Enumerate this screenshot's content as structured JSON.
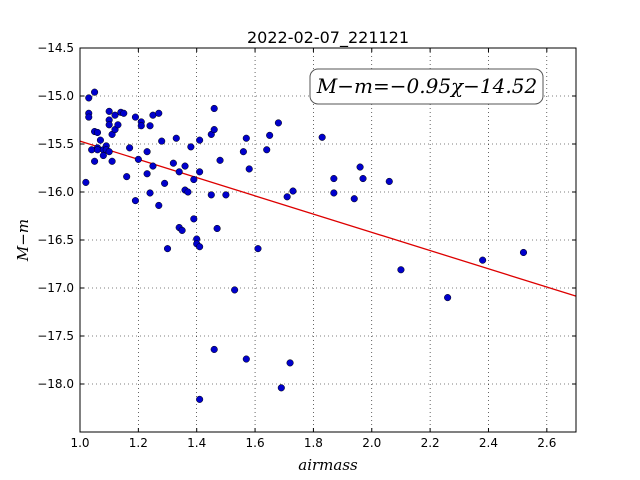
{
  "chart_data": {
    "type": "scatter",
    "title": "2022-02-07_221121",
    "xlabel": "airmass",
    "ylabel": "M−m",
    "xlim": [
      1.0,
      2.7
    ],
    "ylim": [
      -18.5,
      -14.5
    ],
    "y_inverted": true,
    "x_ticks": [
      "1.0",
      "1.2",
      "1.4",
      "1.6",
      "1.8",
      "2.0",
      "2.2",
      "2.4",
      "2.6"
    ],
    "x_tick_values": [
      1.0,
      1.2,
      1.4,
      1.6,
      1.8,
      2.0,
      2.2,
      2.4,
      2.6
    ],
    "y_ticks": [
      "−14.5",
      "−15.0",
      "−15.5",
      "−16.0",
      "−16.5",
      "−17.0",
      "−17.5",
      "−18.0"
    ],
    "y_tick_values": [
      -14.5,
      -15.0,
      -15.5,
      -16.0,
      -16.5,
      -17.0,
      -17.5,
      -18.0
    ],
    "grid": true,
    "annotation": "M−m=−0.95χ−14.52",
    "fit": {
      "slope": -0.95,
      "intercept": -14.52,
      "color": "#dd0000"
    },
    "point_color": "#0000cc",
    "points": [
      [
        1.02,
        -15.9
      ],
      [
        1.03,
        -15.02
      ],
      [
        1.03,
        -15.18
      ],
      [
        1.03,
        -15.22
      ],
      [
        1.04,
        -15.56
      ],
      [
        1.05,
        -14.96
      ],
      [
        1.05,
        -15.37
      ],
      [
        1.05,
        -15.68
      ],
      [
        1.06,
        -15.38
      ],
      [
        1.06,
        -15.54
      ],
      [
        1.06,
        -15.56
      ],
      [
        1.07,
        -15.46
      ],
      [
        1.08,
        -15.56
      ],
      [
        1.08,
        -15.62
      ],
      [
        1.09,
        -15.52
      ],
      [
        1.09,
        -15.56
      ],
      [
        1.1,
        -15.25
      ],
      [
        1.1,
        -15.3
      ],
      [
        1.1,
        -15.16
      ],
      [
        1.1,
        -15.58
      ],
      [
        1.11,
        -15.4
      ],
      [
        1.11,
        -15.68
      ],
      [
        1.12,
        -15.2
      ],
      [
        1.12,
        -15.35
      ],
      [
        1.13,
        -15.3
      ],
      [
        1.14,
        -15.17
      ],
      [
        1.15,
        -15.18
      ],
      [
        1.16,
        -15.84
      ],
      [
        1.17,
        -15.54
      ],
      [
        1.19,
        -15.22
      ],
      [
        1.19,
        -16.09
      ],
      [
        1.2,
        -15.66
      ],
      [
        1.21,
        -15.27
      ],
      [
        1.21,
        -15.31
      ],
      [
        1.23,
        -15.58
      ],
      [
        1.23,
        -15.81
      ],
      [
        1.24,
        -15.31
      ],
      [
        1.24,
        -16.01
      ],
      [
        1.25,
        -15.2
      ],
      [
        1.25,
        -15.73
      ],
      [
        1.27,
        -15.18
      ],
      [
        1.27,
        -16.14
      ],
      [
        1.28,
        -15.47
      ],
      [
        1.29,
        -15.91
      ],
      [
        1.3,
        -16.59
      ],
      [
        1.32,
        -15.7
      ],
      [
        1.33,
        -15.44
      ],
      [
        1.34,
        -15.79
      ],
      [
        1.34,
        -16.37
      ],
      [
        1.35,
        -16.4
      ],
      [
        1.36,
        -15.73
      ],
      [
        1.36,
        -15.98
      ],
      [
        1.37,
        -16.0
      ],
      [
        1.38,
        -15.53
      ],
      [
        1.39,
        -15.87
      ],
      [
        1.39,
        -16.28
      ],
      [
        1.4,
        -16.49
      ],
      [
        1.4,
        -16.54
      ],
      [
        1.41,
        -15.79
      ],
      [
        1.41,
        -15.46
      ],
      [
        1.41,
        -16.57
      ],
      [
        1.41,
        -18.16
      ],
      [
        1.45,
        -15.4
      ],
      [
        1.45,
        -16.03
      ],
      [
        1.46,
        -15.13
      ],
      [
        1.46,
        -15.35
      ],
      [
        1.46,
        -17.64
      ],
      [
        1.47,
        -16.38
      ],
      [
        1.48,
        -15.67
      ],
      [
        1.5,
        -16.03
      ],
      [
        1.53,
        -17.02
      ],
      [
        1.56,
        -15.58
      ],
      [
        1.57,
        -15.44
      ],
      [
        1.57,
        -17.74
      ],
      [
        1.58,
        -15.76
      ],
      [
        1.61,
        -16.59
      ],
      [
        1.64,
        -15.56
      ],
      [
        1.65,
        -15.41
      ],
      [
        1.68,
        -15.28
      ],
      [
        1.69,
        -18.04
      ],
      [
        1.71,
        -16.05
      ],
      [
        1.72,
        -17.78
      ],
      [
        1.73,
        -15.99
      ],
      [
        1.83,
        -15.43
      ],
      [
        1.87,
        -15.86
      ],
      [
        1.87,
        -16.01
      ],
      [
        1.94,
        -16.07
      ],
      [
        1.96,
        -15.74
      ],
      [
        1.97,
        -15.86
      ],
      [
        2.06,
        -15.89
      ],
      [
        2.1,
        -16.81
      ],
      [
        2.26,
        -17.1
      ],
      [
        2.38,
        -16.71
      ],
      [
        2.52,
        -16.63
      ]
    ]
  }
}
